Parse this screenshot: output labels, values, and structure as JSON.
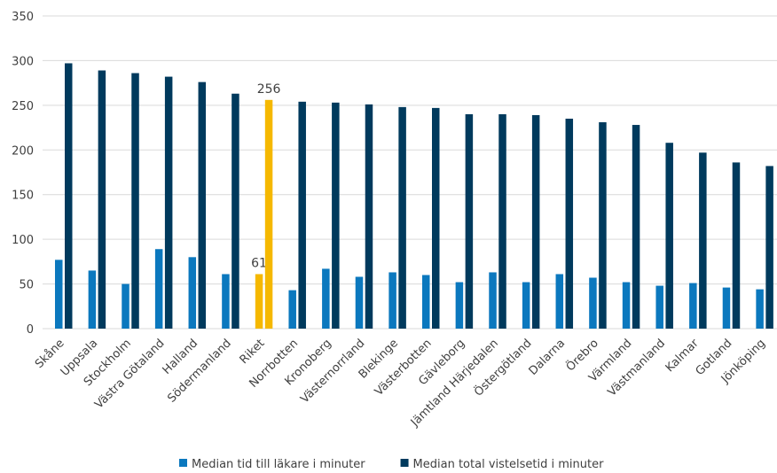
{
  "chart_data": {
    "type": "bar",
    "categories": [
      "Skåne",
      "Uppsala",
      "Stockholm",
      "Västra Götaland",
      "Halland",
      "Södermanland",
      "Riket",
      "Norrbotten",
      "Kronoberg",
      "Västernorrland",
      "Blekinge",
      "Västerbotten",
      "Gävleborg",
      "Jämtland Härjedalen",
      "Östergötland",
      "Dalarna",
      "Örebro",
      "Värmland",
      "Västmanland",
      "Kalmar",
      "Gotland",
      "Jönköping"
    ],
    "series": [
      {
        "name": "Median tid till läkare i minuter",
        "color": "#0b78be",
        "point_colors": [
          "#0b78be",
          "#0b78be",
          "#0b78be",
          "#0b78be",
          "#0b78be",
          "#0b78be",
          "#f5b800",
          "#0b78be",
          "#0b78be",
          "#0b78be",
          "#0b78be",
          "#0b78be",
          "#0b78be",
          "#0b78be",
          "#0b78be",
          "#0b78be",
          "#0b78be",
          "#0b78be",
          "#0b78be",
          "#0b78be",
          "#0b78be",
          "#0b78be"
        ],
        "values": [
          77,
          65,
          50,
          89,
          80,
          61,
          61,
          43,
          67,
          58,
          63,
          60,
          52,
          63,
          52,
          61,
          57,
          52,
          48,
          51,
          46,
          44
        ],
        "value_labels": [
          null,
          null,
          null,
          null,
          null,
          null,
          "61",
          null,
          null,
          null,
          null,
          null,
          null,
          null,
          null,
          null,
          null,
          null,
          null,
          null,
          null,
          null
        ]
      },
      {
        "name": "Median total vistelsetid i minuter",
        "color": "#003a5d",
        "point_colors": [
          "#003a5d",
          "#003a5d",
          "#003a5d",
          "#003a5d",
          "#003a5d",
          "#003a5d",
          "#f5b800",
          "#003a5d",
          "#003a5d",
          "#003a5d",
          "#003a5d",
          "#003a5d",
          "#003a5d",
          "#003a5d",
          "#003a5d",
          "#003a5d",
          "#003a5d",
          "#003a5d",
          "#003a5d",
          "#003a5d",
          "#003a5d",
          "#003a5d"
        ],
        "values": [
          297,
          289,
          286,
          282,
          276,
          263,
          256,
          254,
          253,
          251,
          248,
          247,
          240,
          240,
          239,
          235,
          231,
          228,
          208,
          197,
          186,
          182
        ],
        "value_labels": [
          null,
          null,
          null,
          null,
          null,
          null,
          "256",
          null,
          null,
          null,
          null,
          null,
          null,
          null,
          null,
          null,
          null,
          null,
          null,
          null,
          null,
          null
        ]
      }
    ],
    "ylim": [
      0,
      350
    ],
    "yticks": [
      0,
      50,
      100,
      150,
      200,
      250,
      300,
      350
    ],
    "grid": true,
    "legend": "bottom"
  }
}
